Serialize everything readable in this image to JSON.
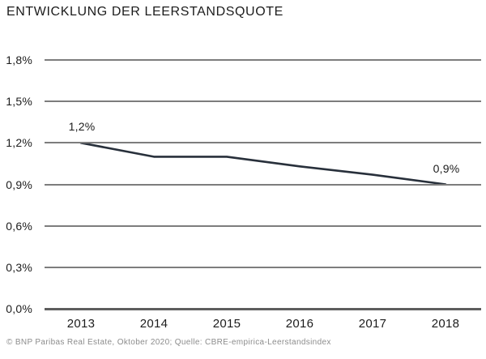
{
  "header": {
    "title": "ENTWICKLUNG DER LEERSTANDSQUOTE"
  },
  "chart_data": {
    "type": "line",
    "title": "ENTWICKLUNG DER LEERSTANDSQUOTE",
    "categories": [
      "2013",
      "2014",
      "2015",
      "2016",
      "2017",
      "2018"
    ],
    "values": [
      1.2,
      1.1,
      1.1,
      1.03,
      0.97,
      0.9
    ],
    "labeled_points": [
      {
        "category": "2013",
        "label": "1,2%"
      },
      {
        "category": "2018",
        "label": "0,9%"
      }
    ],
    "yticks": [
      {
        "value": 1.8,
        "label": "1,8%"
      },
      {
        "value": 1.5,
        "label": "1,5%"
      },
      {
        "value": 1.2,
        "label": "1,2%"
      },
      {
        "value": 0.9,
        "label": "0,9%"
      },
      {
        "value": 0.6,
        "label": "0,6%"
      },
      {
        "value": 0.3,
        "label": "0,3%"
      },
      {
        "value": 0.0,
        "label": "0,0%"
      }
    ],
    "ylim": [
      0,
      1.8
    ],
    "xlabel": "",
    "ylabel": "",
    "grid": true,
    "legend": "none"
  },
  "footer": {
    "source": "© BNP Paribas Real Estate, Oktober 2020; Quelle: CBRE-empirica-Leerstandsindex"
  },
  "colors": {
    "background": "#ffffff",
    "line": "#28303b",
    "grid": "#7d7d7d",
    "baseline": "#5e5e5e",
    "text": "#1c1c1c",
    "footer_text": "#8c8c8c"
  }
}
